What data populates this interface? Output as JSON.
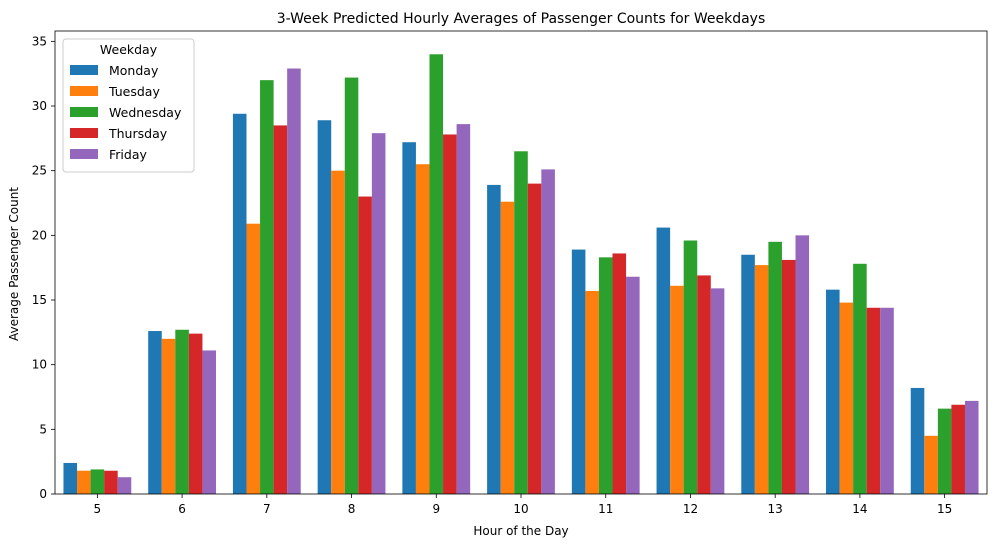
{
  "chart_data": {
    "type": "bar",
    "title": "3-Week Predicted Hourly Averages of Passenger Counts for Weekdays",
    "xlabel": "Hour of the Day",
    "ylabel": "Average Passenger Count",
    "categories": [
      "5",
      "6",
      "7",
      "8",
      "9",
      "10",
      "11",
      "12",
      "13",
      "14",
      "15"
    ],
    "ylim": [
      0,
      35.8
    ],
    "yticks": [
      0,
      5,
      10,
      15,
      20,
      25,
      30,
      35
    ],
    "grid": false,
    "legend": {
      "title": "Weekday",
      "placement": "top-left"
    },
    "series": [
      {
        "name": "Monday",
        "color": "#1f77b4",
        "values": [
          2.4,
          12.6,
          29.4,
          28.9,
          27.2,
          23.9,
          18.9,
          20.6,
          18.5,
          15.8,
          8.2
        ]
      },
      {
        "name": "Tuesday",
        "color": "#ff7f0e",
        "values": [
          1.8,
          12.0,
          20.9,
          25.0,
          25.5,
          22.6,
          15.7,
          16.1,
          17.7,
          14.8,
          4.5
        ]
      },
      {
        "name": "Wednesday",
        "color": "#2ca02c",
        "values": [
          1.9,
          12.7,
          32.0,
          32.2,
          34.0,
          26.5,
          18.3,
          19.6,
          19.5,
          17.8,
          6.6
        ]
      },
      {
        "name": "Thursday",
        "color": "#d62728",
        "values": [
          1.8,
          12.4,
          28.5,
          23.0,
          27.8,
          24.0,
          18.6,
          16.9,
          18.1,
          14.4,
          6.9
        ]
      },
      {
        "name": "Friday",
        "color": "#9467bd",
        "values": [
          1.3,
          11.1,
          32.9,
          27.9,
          28.6,
          25.1,
          16.8,
          15.9,
          20.0,
          14.4,
          7.2
        ]
      }
    ]
  }
}
